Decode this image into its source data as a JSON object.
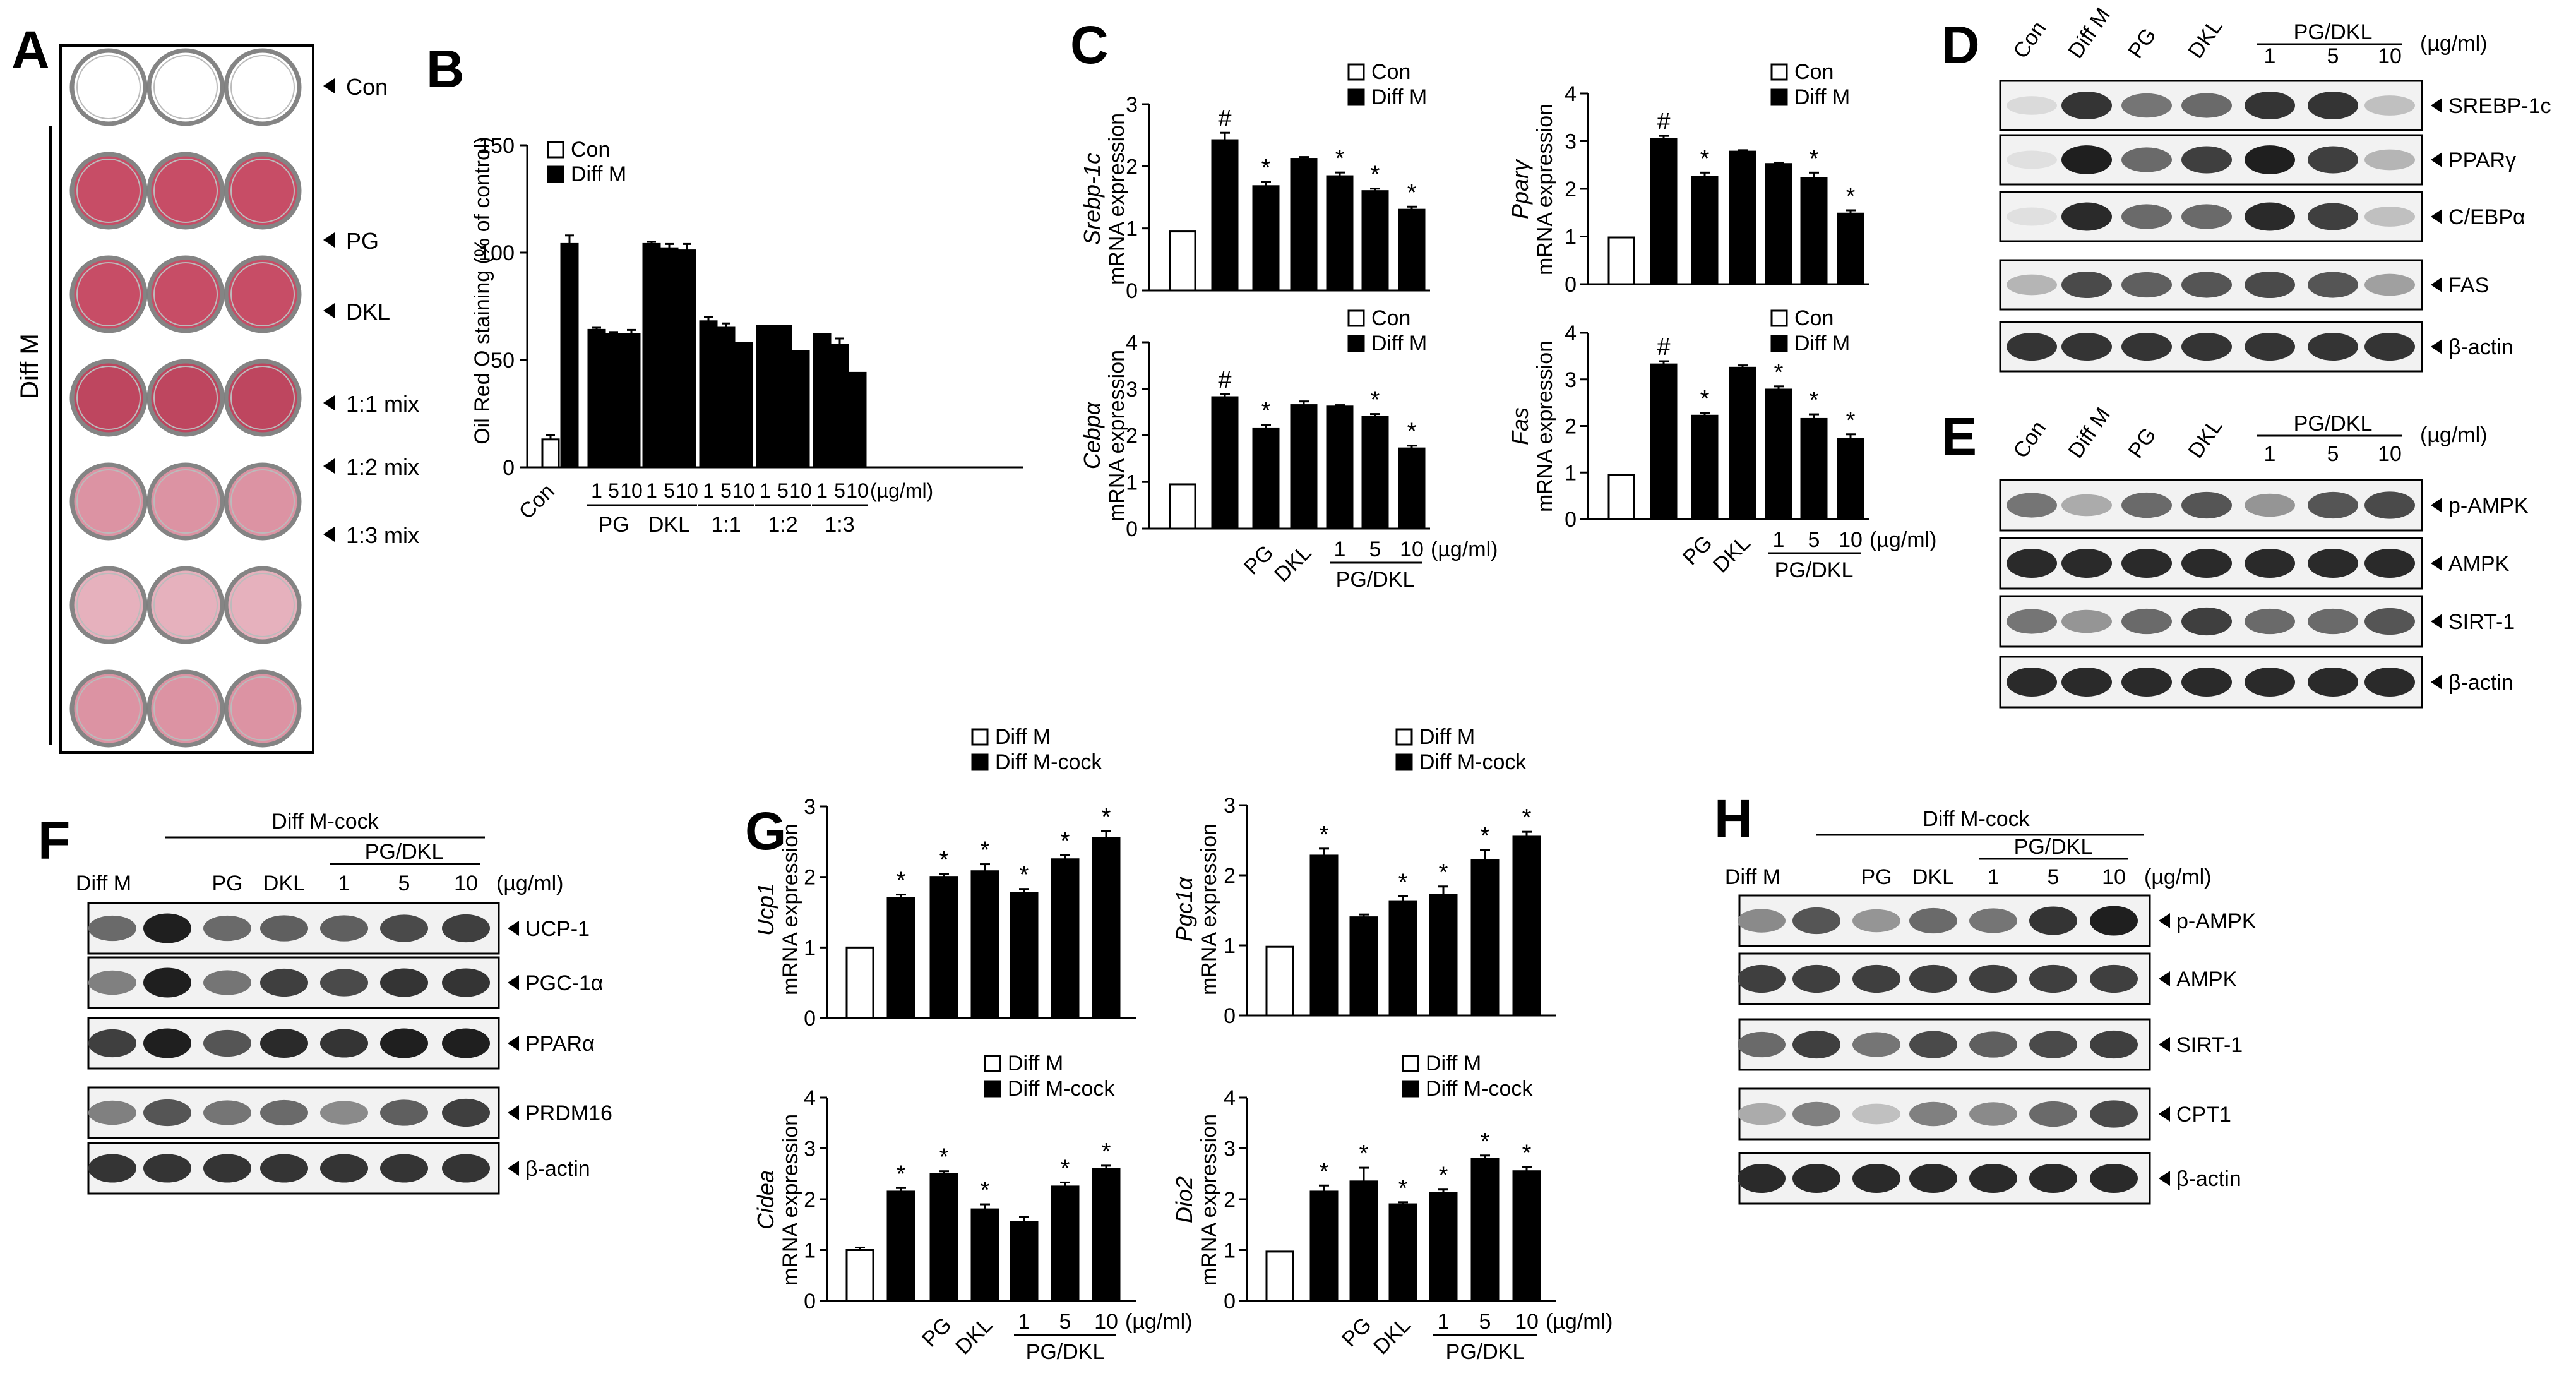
{
  "panel_labels": [
    "A",
    "B",
    "C",
    "D",
    "E",
    "F",
    "G",
    "H"
  ],
  "panelA": {
    "side_label": "Diff M",
    "row_labels": [
      "Con",
      "PG",
      "DKL",
      "1:1 mix",
      "1:2 mix",
      "1:3 mix"
    ],
    "well_colors": [
      "#ffffff",
      "#c23a56",
      "#b8324e",
      "#d9889a",
      "#e4a9b6"
    ]
  },
  "panelB": {
    "legend": [
      "Con",
      "Diff M"
    ],
    "con_label": "Con",
    "unit": "(µg/ml)",
    "doses": [
      "1",
      "5",
      "10"
    ],
    "groups": [
      "PG",
      "DKL",
      "1:1",
      "1:2",
      "1:3"
    ]
  },
  "chart_data": [
    {
      "id": "B",
      "type": "bar",
      "ylabel": "Oil Red O staining (% of control)",
      "ylim": [
        0,
        150
      ],
      "yticks": [
        0,
        50,
        100,
        150
      ],
      "bars": [
        {
          "label": "Con",
          "value": 13,
          "err": 2,
          "fill": "white"
        },
        {
          "label": "Diff M",
          "value": 104,
          "err": 4,
          "fill": "black"
        },
        {
          "label": "PG 1",
          "value": 64,
          "err": 1,
          "fill": "black"
        },
        {
          "label": "PG 5",
          "value": 62,
          "err": 1,
          "fill": "black"
        },
        {
          "label": "PG 10",
          "value": 62,
          "err": 2,
          "fill": "black"
        },
        {
          "label": "DKL 1",
          "value": 104,
          "err": 1,
          "fill": "black"
        },
        {
          "label": "DKL 5",
          "value": 102,
          "err": 2,
          "fill": "black"
        },
        {
          "label": "DKL 10",
          "value": 101,
          "err": 3,
          "fill": "black"
        },
        {
          "label": "1:1 1",
          "value": 68,
          "err": 2,
          "fill": "black"
        },
        {
          "label": "1:1 5",
          "value": 65,
          "err": 2,
          "fill": "black"
        },
        {
          "label": "1:1 10",
          "value": 58,
          "err": 0,
          "fill": "black"
        },
        {
          "label": "1:2 1",
          "value": 66,
          "err": 0,
          "fill": "black"
        },
        {
          "label": "1:2 5",
          "value": 66,
          "err": 0,
          "fill": "black"
        },
        {
          "label": "1:2 10",
          "value": 54,
          "err": 0,
          "fill": "black"
        },
        {
          "label": "1:3 1",
          "value": 62,
          "err": 0,
          "fill": "black"
        },
        {
          "label": "1:3 5",
          "value": 57,
          "err": 3,
          "fill": "black"
        },
        {
          "label": "1:3 10",
          "value": 44,
          "err": 0,
          "fill": "black"
        }
      ]
    },
    {
      "id": "C1",
      "type": "bar",
      "gene": "Srebp-1c",
      "ylabel2": "mRNA expression",
      "ylim": [
        0,
        3
      ],
      "yticks": [
        0,
        1,
        2,
        3
      ],
      "legend": [
        "Con",
        "Diff M"
      ],
      "bars": [
        {
          "label": "Con",
          "value": 0.95,
          "err": 0,
          "fill": "white"
        },
        {
          "label": "Diff M",
          "value": 2.42,
          "err": 0.12,
          "fill": "black",
          "mark": "#"
        },
        {
          "label": "PG",
          "value": 1.68,
          "err": 0.07,
          "fill": "black",
          "mark": "*"
        },
        {
          "label": "DKL",
          "value": 2.12,
          "err": 0.03,
          "fill": "black"
        },
        {
          "label": "1",
          "value": 1.84,
          "err": 0.06,
          "fill": "black",
          "mark": "*"
        },
        {
          "label": "5",
          "value": 1.6,
          "err": 0.04,
          "fill": "black",
          "mark": "*"
        },
        {
          "label": "10",
          "value": 1.3,
          "err": 0.05,
          "fill": "black",
          "mark": "*"
        }
      ]
    },
    {
      "id": "C2",
      "type": "bar",
      "gene": "Pparγ",
      "ylabel2": "mRNA expression",
      "ylim": [
        0,
        4
      ],
      "yticks": [
        0,
        1,
        2,
        3,
        4
      ],
      "legend": [
        "Con",
        "Diff M"
      ],
      "bars": [
        {
          "label": "Con",
          "value": 0.98,
          "err": 0,
          "fill": "white"
        },
        {
          "label": "Diff M",
          "value": 3.05,
          "err": 0.06,
          "fill": "black",
          "mark": "#"
        },
        {
          "label": "PG",
          "value": 2.25,
          "err": 0.09,
          "fill": "black",
          "mark": "*"
        },
        {
          "label": "DKL",
          "value": 2.78,
          "err": 0.03,
          "fill": "black"
        },
        {
          "label": "1",
          "value": 2.52,
          "err": 0.03,
          "fill": "black"
        },
        {
          "label": "5",
          "value": 2.22,
          "err": 0.12,
          "fill": "black",
          "mark": "*"
        },
        {
          "label": "10",
          "value": 1.48,
          "err": 0.07,
          "fill": "black",
          "mark": "*"
        }
      ]
    },
    {
      "id": "C3",
      "type": "bar",
      "gene": "Cebpα",
      "ylabel2": "mRNA expression",
      "ylim": [
        0,
        4
      ],
      "yticks": [
        0,
        1,
        2,
        3,
        4
      ],
      "legend": [
        "Con",
        "Diff M"
      ],
      "bars": [
        {
          "label": "Con",
          "value": 0.95,
          "err": 0,
          "fill": "white"
        },
        {
          "label": "Diff M",
          "value": 2.82,
          "err": 0.07,
          "fill": "black",
          "mark": "#"
        },
        {
          "label": "PG",
          "value": 2.15,
          "err": 0.08,
          "fill": "black",
          "mark": "*"
        },
        {
          "label": "DKL",
          "value": 2.65,
          "err": 0.08,
          "fill": "black"
        },
        {
          "label": "1",
          "value": 2.62,
          "err": 0.03,
          "fill": "black"
        },
        {
          "label": "5",
          "value": 2.4,
          "err": 0.06,
          "fill": "black",
          "mark": "*"
        },
        {
          "label": "10",
          "value": 1.72,
          "err": 0.06,
          "fill": "black",
          "mark": "*"
        }
      ]
    },
    {
      "id": "C4",
      "type": "bar",
      "gene": "Fas",
      "ylabel2": "mRNA expression",
      "ylim": [
        0,
        4
      ],
      "yticks": [
        0,
        1,
        2,
        3,
        4
      ],
      "legend": [
        "Con",
        "Diff M"
      ],
      "bars": [
        {
          "label": "Con",
          "value": 0.95,
          "err": 0,
          "fill": "white"
        },
        {
          "label": "Diff M",
          "value": 3.32,
          "err": 0.07,
          "fill": "black",
          "mark": "#"
        },
        {
          "label": "PG",
          "value": 2.22,
          "err": 0.06,
          "fill": "black",
          "mark": "*"
        },
        {
          "label": "DKL",
          "value": 3.25,
          "err": 0.05,
          "fill": "black"
        },
        {
          "label": "1",
          "value": 2.78,
          "err": 0.07,
          "fill": "black",
          "mark": "*"
        },
        {
          "label": "5",
          "value": 2.15,
          "err": 0.1,
          "fill": "black",
          "mark": "*"
        },
        {
          "label": "10",
          "value": 1.72,
          "err": 0.1,
          "fill": "black",
          "mark": "*"
        }
      ]
    },
    {
      "id": "G1",
      "type": "bar",
      "gene": "Ucp1",
      "ylabel2": "mRNA expression",
      "ylim": [
        0,
        3
      ],
      "yticks": [
        0,
        1,
        2,
        3
      ],
      "legend": [
        "Diff M",
        "Diff M-cock"
      ],
      "bars": [
        {
          "label": "Diff M",
          "value": 1.0,
          "err": 0,
          "fill": "white"
        },
        {
          "label": "Diff M-cock",
          "value": 1.7,
          "err": 0.05,
          "fill": "black",
          "mark": "*"
        },
        {
          "label": "PG",
          "value": 2.0,
          "err": 0.04,
          "fill": "black",
          "mark": "*"
        },
        {
          "label": "DKL",
          "value": 2.08,
          "err": 0.1,
          "fill": "black",
          "mark": "*"
        },
        {
          "label": "1",
          "value": 1.77,
          "err": 0.06,
          "fill": "black",
          "mark": "*"
        },
        {
          "label": "5",
          "value": 2.25,
          "err": 0.06,
          "fill": "black",
          "mark": "*"
        },
        {
          "label": "10",
          "value": 2.55,
          "err": 0.1,
          "fill": "black",
          "mark": "*"
        }
      ]
    },
    {
      "id": "G2",
      "type": "bar",
      "gene": "Pgc1α",
      "ylabel2": "mRNA expression",
      "ylim": [
        0,
        3
      ],
      "yticks": [
        0,
        1,
        2,
        3
      ],
      "legend": [
        "Diff M",
        "Diff M-cock"
      ],
      "bars": [
        {
          "label": "Diff M",
          "value": 0.98,
          "err": 0,
          "fill": "white"
        },
        {
          "label": "Diff M-cock",
          "value": 2.28,
          "err": 0.1,
          "fill": "black",
          "mark": "*"
        },
        {
          "label": "PG",
          "value": 1.4,
          "err": 0.04,
          "fill": "black"
        },
        {
          "label": "DKL",
          "value": 1.63,
          "err": 0.07,
          "fill": "black",
          "mark": "*"
        },
        {
          "label": "1",
          "value": 1.72,
          "err": 0.12,
          "fill": "black",
          "mark": "*"
        },
        {
          "label": "5",
          "value": 2.22,
          "err": 0.14,
          "fill": "black",
          "mark": "*"
        },
        {
          "label": "10",
          "value": 2.55,
          "err": 0.07,
          "fill": "black",
          "mark": "*"
        }
      ]
    },
    {
      "id": "G3",
      "type": "bar",
      "gene": "Cidea",
      "ylabel2": "mRNA expression",
      "ylim": [
        0,
        4
      ],
      "yticks": [
        0,
        1,
        2,
        3,
        4
      ],
      "legend": [
        "Diff M",
        "Diff M-cock"
      ],
      "bars": [
        {
          "label": "Diff M",
          "value": 1.0,
          "err": 0.05,
          "fill": "white"
        },
        {
          "label": "Diff M-cock",
          "value": 2.15,
          "err": 0.07,
          "fill": "black",
          "mark": "*"
        },
        {
          "label": "PG",
          "value": 2.5,
          "err": 0.05,
          "fill": "black",
          "mark": "*"
        },
        {
          "label": "DKL",
          "value": 1.8,
          "err": 0.1,
          "fill": "black",
          "mark": "*"
        },
        {
          "label": "1",
          "value": 1.55,
          "err": 0.1,
          "fill": "black"
        },
        {
          "label": "5",
          "value": 2.25,
          "err": 0.08,
          "fill": "black",
          "mark": "*"
        },
        {
          "label": "10",
          "value": 2.6,
          "err": 0.06,
          "fill": "black",
          "mark": "*"
        }
      ]
    },
    {
      "id": "G4",
      "type": "bar",
      "gene": "Dio2",
      "ylabel2": "mRNA expression",
      "ylim": [
        0,
        4
      ],
      "yticks": [
        0,
        1,
        2,
        3,
        4
      ],
      "legend": [
        "Diff M",
        "Diff M-cock"
      ],
      "bars": [
        {
          "label": "Diff M",
          "value": 0.97,
          "err": 0,
          "fill": "white"
        },
        {
          "label": "Diff M-cock",
          "value": 2.15,
          "err": 0.12,
          "fill": "black",
          "mark": "*"
        },
        {
          "label": "PG",
          "value": 2.35,
          "err": 0.27,
          "fill": "black",
          "mark": "*"
        },
        {
          "label": "DKL",
          "value": 1.9,
          "err": 0.04,
          "fill": "black",
          "mark": "*"
        },
        {
          "label": "1",
          "value": 2.12,
          "err": 0.07,
          "fill": "black",
          "mark": "*"
        },
        {
          "label": "5",
          "value": 2.8,
          "err": 0.06,
          "fill": "black",
          "mark": "*"
        },
        {
          "label": "10",
          "value": 2.55,
          "err": 0.08,
          "fill": "black",
          "mark": "*"
        }
      ]
    }
  ],
  "chartC_axis": {
    "cats": [
      "PG",
      "DKL"
    ],
    "doses": [
      "1",
      "5",
      "10"
    ],
    "group": "PG/DKL",
    "unit": "(µg/ml)"
  },
  "blotD": {
    "lanes": [
      "Con",
      "Diff M",
      "PG",
      "DKL",
      "1",
      "5",
      "10"
    ],
    "group_label": "PG/DKL",
    "unit": "(µg/ml)",
    "bands": [
      "SREBP-1c",
      "PPARγ",
      "C/EBPα",
      "FAS",
      "β-actin"
    ]
  },
  "blotE": {
    "lanes": [
      "Con",
      "Diff M",
      "PG",
      "DKL",
      "1",
      "5",
      "10"
    ],
    "group_label": "PG/DKL",
    "unit": "(µg/ml)",
    "bands": [
      "p-AMPK",
      "AMPK",
      "SIRT-1",
      "β-actin"
    ]
  },
  "blotF": {
    "top_label": "Diff M-cock",
    "first_lane": "Diff M",
    "lanes": [
      "PG",
      "DKL",
      "1",
      "5",
      "10"
    ],
    "group_label": "PG/DKL",
    "unit": "(µg/ml)",
    "bands": [
      "UCP-1",
      "PGC-1α",
      "PPARα",
      "PRDM16",
      "β-actin"
    ]
  },
  "blotH": {
    "top_label": "Diff M-cock",
    "first_lane": "Diff M",
    "lanes": [
      "PG",
      "DKL",
      "1",
      "5",
      "10"
    ],
    "group_label": "PG/DKL",
    "unit": "(µg/ml)",
    "bands": [
      "p-AMPK",
      "AMPK",
      "SIRT-1",
      "CPT1",
      "β-actin"
    ]
  }
}
